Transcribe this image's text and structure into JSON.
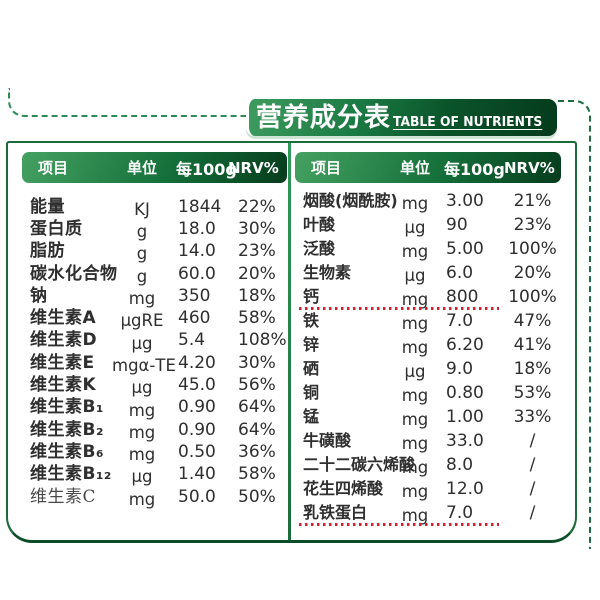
{
  "banner": {
    "title_zh": "营养成分表",
    "title_en": "TABLE OF NUTRIENTS"
  },
  "tables": {
    "left": {
      "headers": {
        "item": "项目",
        "unit": "单位",
        "per": "每100g",
        "nrv": "NRV%"
      },
      "rows": [
        {
          "name": "能量",
          "unit": "KJ",
          "value": "1844",
          "nrv": "22%"
        },
        {
          "name": "蛋白质",
          "unit": "g",
          "value": "18.0",
          "nrv": "30%"
        },
        {
          "name": "脂肪",
          "unit": "g",
          "value": "14.0",
          "nrv": "23%"
        },
        {
          "name": "碳水化合物",
          "unit": "g",
          "value": "60.0",
          "nrv": "20%"
        },
        {
          "name": "钠",
          "unit": "mg",
          "value": "350",
          "nrv": "18%"
        },
        {
          "name": "维生素A",
          "unit": "μgRE",
          "value": "460",
          "nrv": "58%"
        },
        {
          "name": "维生素D",
          "unit": "μg",
          "value": "5.4",
          "nrv": "108%"
        },
        {
          "name": "维生素E",
          "unit": "mgα-TE",
          "value": "4.20",
          "nrv": "30%"
        },
        {
          "name": "维生素K",
          "unit": "μg",
          "value": "45.0",
          "nrv": "56%"
        },
        {
          "name": "维生素B₁",
          "unit": "mg",
          "value": "0.90",
          "nrv": "64%"
        },
        {
          "name": "维生素B₂",
          "unit": "mg",
          "value": "0.90",
          "nrv": "64%"
        },
        {
          "name": "维生素B₆",
          "unit": "mg",
          "value": "0.50",
          "nrv": "36%"
        },
        {
          "name": "维生素B₁₂",
          "unit": "μg",
          "value": "1.40",
          "nrv": "58%"
        },
        {
          "name": "维生素C",
          "unit": "mg",
          "value": "50.0",
          "nrv": "50%",
          "light": true
        }
      ]
    },
    "right": {
      "headers": {
        "item": "项目",
        "unit": "单位",
        "per": "每100g",
        "nrv": "NRV%"
      },
      "rows": [
        {
          "name": "烟酸(烟酰胺)",
          "unit": "mg",
          "value": "3.00",
          "nrv": "21%"
        },
        {
          "name": "叶酸",
          "unit": "μg",
          "value": "90",
          "nrv": "23%"
        },
        {
          "name": "泛酸",
          "unit": "mg",
          "value": "5.00",
          "nrv": "100%"
        },
        {
          "name": "生物素",
          "unit": "μg",
          "value": "6.0",
          "nrv": "20%"
        },
        {
          "name": "钙",
          "unit": "mg",
          "value": "800",
          "nrv": "100%",
          "underline": true
        },
        {
          "name": "铁",
          "unit": "mg",
          "value": "7.0",
          "nrv": "47%"
        },
        {
          "name": "锌",
          "unit": "mg",
          "value": "6.20",
          "nrv": "41%"
        },
        {
          "name": "硒",
          "unit": "μg",
          "value": "9.0",
          "nrv": "18%"
        },
        {
          "name": "铜",
          "unit": "mg",
          "value": "0.80",
          "nrv": "53%"
        },
        {
          "name": "锰",
          "unit": "mg",
          "value": "1.00",
          "nrv": "33%"
        },
        {
          "name": "牛磺酸",
          "unit": "mg",
          "value": "33.0",
          "nrv": "/"
        },
        {
          "name": "二十二碳六烯酸",
          "unit": "mg",
          "value": "8.0",
          "nrv": "/"
        },
        {
          "name": "花生四烯酸",
          "unit": "mg",
          "value": "12.0",
          "nrv": "/"
        },
        {
          "name": "乳铁蛋白",
          "unit": "mg",
          "value": "7.0",
          "nrv": "/",
          "underline": true
        }
      ]
    }
  },
  "colors": {
    "accent_green": "#1c6b3a",
    "header_gradient_start": "#45a161",
    "header_gradient_end": "#063c1d",
    "banner_gradient_start": "#3f9c5f",
    "banner_gradient_end": "#053a1c",
    "red_dotted_line": "#d21f2f"
  }
}
